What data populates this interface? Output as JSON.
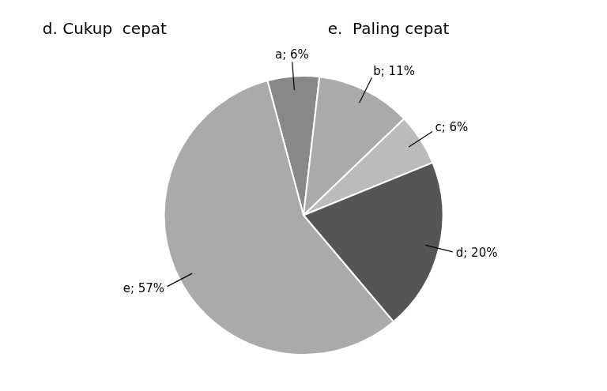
{
  "chart_data": {
    "type": "pie",
    "annotations": [
      "d. Cukup  cepat",
      "e.  Paling cepat"
    ],
    "categories": [
      "a",
      "b",
      "c",
      "d",
      "e"
    ],
    "values": [
      6,
      11,
      6,
      20,
      57
    ],
    "value_labels": [
      "a; 6%",
      "b; 11%",
      "c; 6%",
      "d; 20%",
      "e; 57%"
    ],
    "colors": [
      "#888888",
      "#AAAAAA",
      "#BBBBBB",
      "#555555",
      "#AAAAAA"
    ],
    "data_labels": true
  }
}
